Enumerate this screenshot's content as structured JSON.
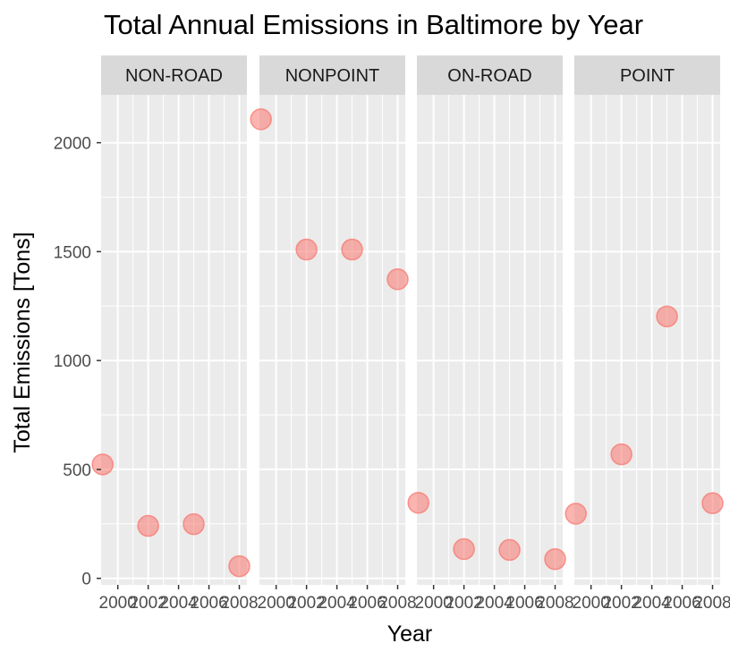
{
  "chart_data": {
    "type": "scatter",
    "title": "Total Annual Emissions in Baltimore by Year",
    "xlabel": "Year",
    "ylabel": "Total Emissions [Tons]",
    "x_ticks": [
      2000,
      2002,
      2004,
      2006,
      2008
    ],
    "y_ticks": [
      0,
      500,
      1000,
      1500,
      2000
    ],
    "xlim": [
      1998.9,
      2008.5
    ],
    "ylim": [
      -30,
      2220
    ],
    "grid": true,
    "legend": "none",
    "colors": {
      "point_fill": "#f8766d",
      "panel_bg": "#ebebeb",
      "strip_bg": "#d9d9d9",
      "grid": "#ffffff"
    },
    "panels": [
      {
        "name": "NON-ROAD",
        "points": [
          {
            "x": 1999,
            "y": 522.94
          },
          {
            "x": 2002,
            "y": 240.85
          },
          {
            "x": 2005,
            "y": 248.93
          },
          {
            "x": 2008,
            "y": 55.82
          }
        ]
      },
      {
        "name": "NONPOINT",
        "points": [
          {
            "x": 1999,
            "y": 2107.63
          },
          {
            "x": 2002,
            "y": 1509.5
          },
          {
            "x": 2005,
            "y": 1509.5
          },
          {
            "x": 2008,
            "y": 1373.21
          }
        ]
      },
      {
        "name": "ON-ROAD",
        "points": [
          {
            "x": 1999,
            "y": 346.82
          },
          {
            "x": 2002,
            "y": 134.31
          },
          {
            "x": 2005,
            "y": 130.43
          },
          {
            "x": 2008,
            "y": 88.28
          }
        ]
      },
      {
        "name": "POINT",
        "points": [
          {
            "x": 1999,
            "y": 296.8
          },
          {
            "x": 2002,
            "y": 569.26
          },
          {
            "x": 2005,
            "y": 1202.49
          },
          {
            "x": 2008,
            "y": 344.98
          }
        ]
      }
    ]
  }
}
